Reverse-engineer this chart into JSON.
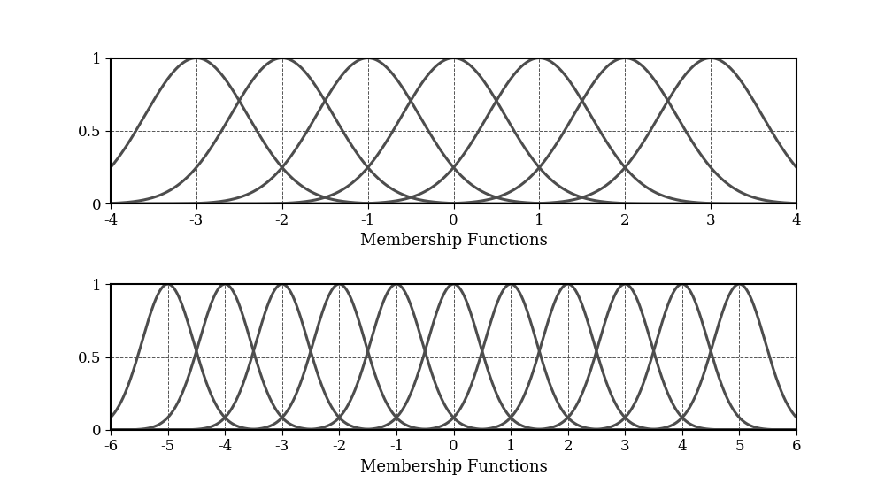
{
  "top": {
    "centers": [
      -3,
      -2,
      -1,
      0,
      1,
      2,
      3
    ],
    "sigma": 0.6,
    "xlim": [
      -4,
      4
    ],
    "xticks": [
      -4,
      -3,
      -2,
      -1,
      0,
      1,
      2,
      3,
      4
    ],
    "yticks": [
      0,
      0.5,
      1
    ],
    "xlabel": "Membership Functions"
  },
  "bottom": {
    "centers": [
      -5,
      -4,
      -3,
      -2,
      -1,
      0,
      1,
      2,
      3,
      4,
      5
    ],
    "sigma": 0.45,
    "xlim": [
      -6,
      6
    ],
    "xticks": [
      -6,
      -5,
      -4,
      -3,
      -2,
      -1,
      0,
      1,
      2,
      3,
      4,
      5,
      6
    ],
    "yticks": [
      0,
      0.5,
      1
    ],
    "xlabel": "Membership Functions"
  },
  "line_color": "#4d4d4d",
  "line_width": 2.2,
  "background_color": "#ffffff",
  "grid_color": "#555555",
  "grid_style": "--",
  "grid_linewidth": 0.7
}
